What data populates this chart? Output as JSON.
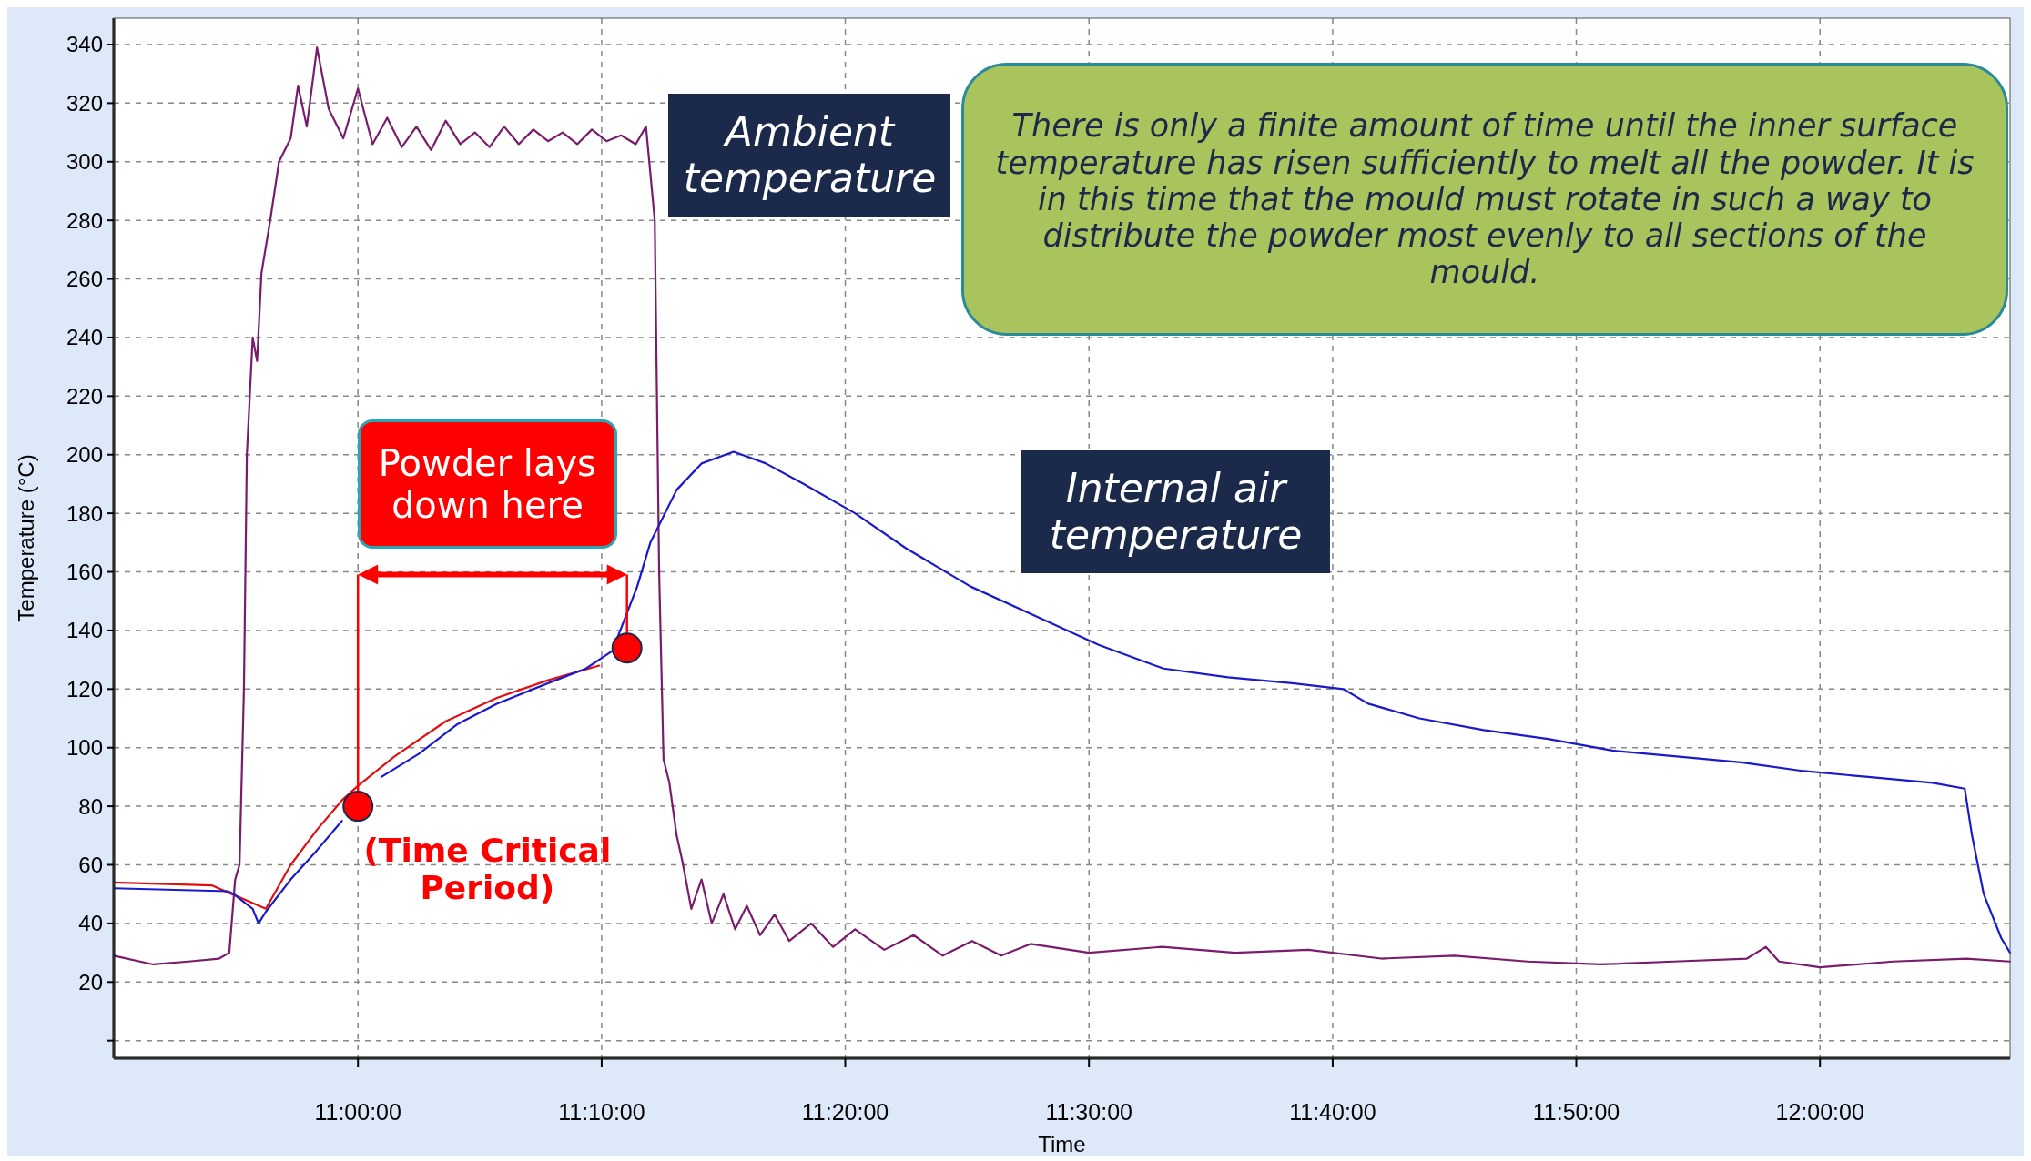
{
  "chart_data": {
    "type": "line",
    "xlabel": "Time",
    "ylabel": "Temperature (°C)",
    "xlim": [
      10.833,
      12.13
    ],
    "ylim": [
      -6,
      349
    ],
    "xticks": [
      {
        "value": 11.0,
        "label": "11:00:00"
      },
      {
        "value": 11.1667,
        "label": "11:10:00"
      },
      {
        "value": 11.3333,
        "label": "11:20:00"
      },
      {
        "value": 11.5,
        "label": "11:30:00"
      },
      {
        "value": 11.6667,
        "label": "11:40:00"
      },
      {
        "value": 11.8333,
        "label": "11:50:00"
      },
      {
        "value": 12.0,
        "label": "12:00:00"
      }
    ],
    "yticks": [
      {
        "value": 0,
        "label": null
      },
      20,
      40,
      60,
      80,
      100,
      120,
      140,
      160,
      180,
      200,
      220,
      240,
      260,
      280,
      300,
      320,
      340
    ],
    "grid": true,
    "line_style": "solid",
    "series": [
      {
        "color": "#7a1c6c",
        "x": [
          10.833,
          10.86,
          10.884,
          10.905,
          10.912,
          10.916,
          10.919,
          10.922,
          10.924,
          10.928,
          10.931,
          10.934,
          10.94,
          10.946,
          10.954,
          10.959,
          10.965,
          10.972,
          10.98,
          10.99,
          11.0,
          11.01,
          11.02,
          11.03,
          11.04,
          11.05,
          11.06,
          11.07,
          11.08,
          11.09,
          11.1,
          11.11,
          11.12,
          11.13,
          11.14,
          11.15,
          11.16,
          11.17,
          11.18,
          11.19,
          11.197,
          11.203,
          11.206,
          11.209,
          11.213,
          11.218,
          11.222,
          11.228,
          11.235,
          11.242,
          11.25,
          11.258,
          11.266,
          11.275,
          11.285,
          11.295,
          11.31,
          11.325,
          11.34,
          11.36,
          11.38,
          11.4,
          11.42,
          11.44,
          11.46,
          11.5,
          11.55,
          11.6,
          11.65,
          11.7,
          11.75,
          11.8,
          11.85,
          11.9,
          11.95,
          11.963,
          11.972,
          12.0,
          12.05,
          12.1,
          12.13
        ],
        "values": [
          29,
          26,
          27,
          28,
          30,
          55,
          60,
          120,
          200,
          240,
          232,
          262,
          280,
          300,
          308,
          326,
          312,
          339,
          318,
          308,
          325,
          306,
          315,
          305,
          312,
          304,
          314,
          306,
          310,
          305,
          312,
          306,
          311,
          307,
          310,
          306,
          311,
          307,
          309,
          306,
          312,
          280,
          160,
          96,
          88,
          70,
          61,
          45,
          55,
          40,
          50,
          38,
          46,
          36,
          43,
          34,
          40,
          32,
          38,
          31,
          36,
          29,
          34,
          29,
          33,
          30,
          32,
          30,
          31,
          28,
          29,
          27,
          26,
          27,
          28,
          32,
          27,
          25,
          27,
          28,
          27
        ]
      },
      {
        "color": "#e01010",
        "x": [
          10.833,
          10.9,
          10.937,
          10.954,
          10.972,
          10.989,
          11.0,
          11.025,
          11.06,
          11.095,
          11.13,
          11.165
        ],
        "values": [
          54,
          53,
          45,
          60,
          72,
          82,
          87,
          97,
          109,
          117,
          123,
          128
        ]
      },
      {
        "color": "#1a1acc",
        "x": [
          10.833,
          10.911,
          10.915,
          10.928,
          10.932,
          10.937,
          10.954,
          10.972,
          10.989,
          11.0,
          11.016,
          11.042,
          11.068,
          11.095,
          11.13,
          11.156,
          11.174,
          11.191,
          11.2,
          11.218,
          11.235,
          11.257,
          11.279,
          11.305,
          11.34,
          11.375,
          11.419,
          11.463,
          11.507,
          11.551,
          11.595,
          11.639,
          11.674,
          11.691,
          11.726,
          11.77,
          11.814,
          11.858,
          11.902,
          11.946,
          11.989,
          12.033,
          12.077,
          12.099,
          12.104,
          12.112,
          12.124,
          12.13
        ],
        "values": [
          52,
          51,
          50,
          45,
          40,
          44,
          55,
          65,
          75,
          null,
          90,
          98,
          108,
          115,
          122,
          127,
          133,
          155,
          170,
          188,
          197,
          201,
          197,
          190,
          180,
          168,
          155,
          145,
          135,
          127,
          124,
          122,
          120,
          115,
          110,
          106,
          103,
          99,
          97,
          95,
          92,
          90,
          88,
          86,
          70,
          50,
          35,
          30
        ]
      },
      {
        "type": "scatter",
        "color": "#ff0000",
        "marker": "circle",
        "x": [
          11.0,
          11.184
        ],
        "values": [
          80,
          134
        ]
      }
    ],
    "annotations": [
      "Ambient temperature",
      "Internal air temperature",
      "Powder lays down here",
      "(Time Critical Period)",
      "There is only a finite amount of time until the inner surface temperature has risen sufficiently to melt all the powder. It is in this time that the mould must rotate in such a way to distribute the powder most evenly to all sections of the mould."
    ]
  }
}
